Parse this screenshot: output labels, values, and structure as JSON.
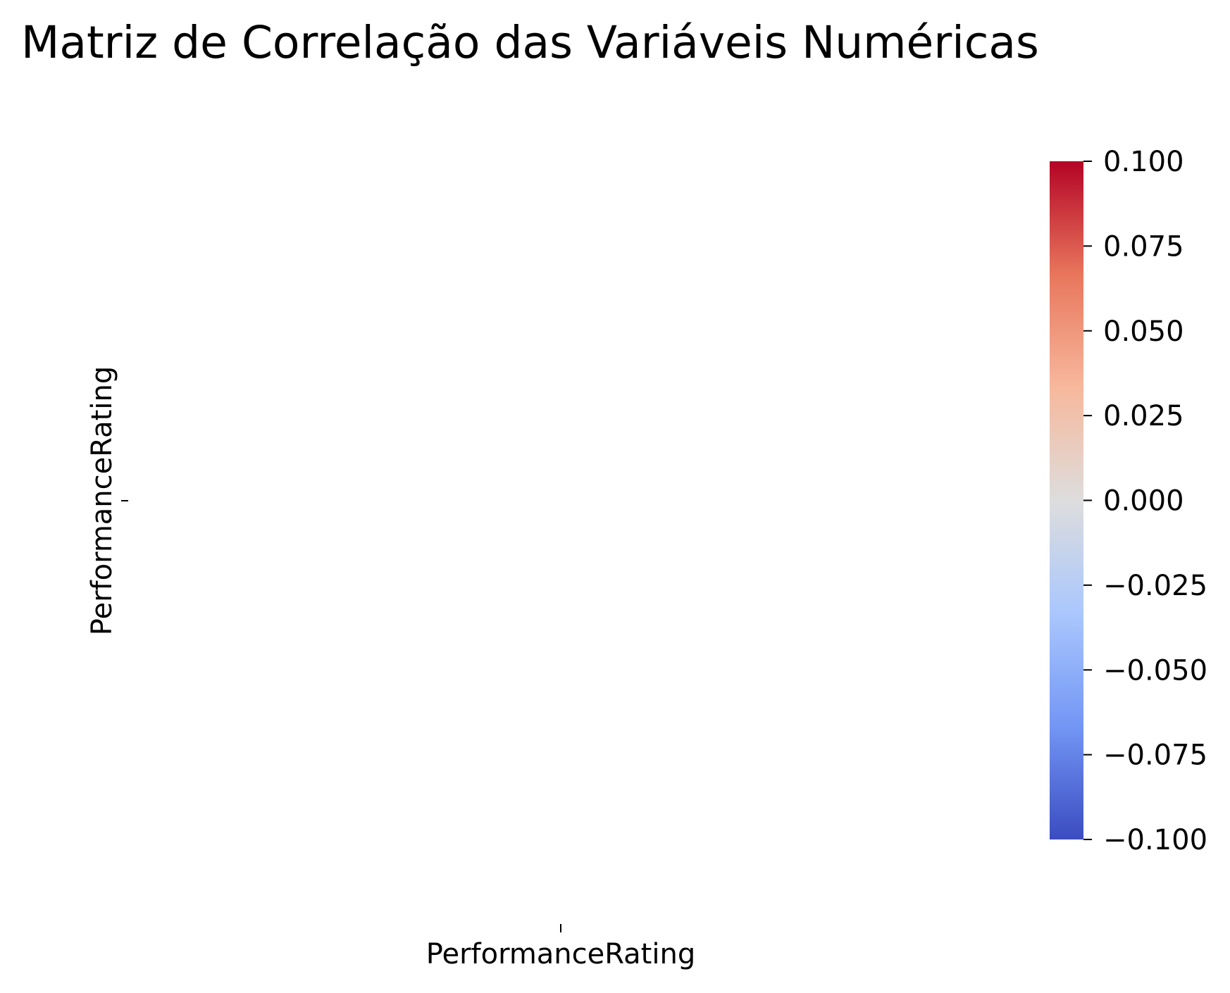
{
  "chart_data": {
    "type": "heatmap",
    "title": "Matriz de Correlação das Variáveis Numéricas",
    "x_labels": [
      "PerformanceRating"
    ],
    "y_labels": [
      "PerformanceRating"
    ],
    "values": [
      [
        null
      ]
    ],
    "colormap": "coolwarm",
    "colorbar": {
      "min": -0.1,
      "max": 0.1,
      "ticks": [
        {
          "value": 0.1,
          "label": "0.100"
        },
        {
          "value": 0.075,
          "label": "0.075"
        },
        {
          "value": 0.05,
          "label": "0.050"
        },
        {
          "value": 0.025,
          "label": "0.025"
        },
        {
          "value": 0.0,
          "label": "0.000"
        },
        {
          "value": -0.025,
          "label": "−0.025"
        },
        {
          "value": -0.05,
          "label": "−0.050"
        },
        {
          "value": -0.075,
          "label": "−0.075"
        },
        {
          "value": -0.1,
          "label": "−0.100"
        }
      ],
      "colors": [
        "#3b4cc0",
        "#7396f5",
        "#aac7fd",
        "#dddddd",
        "#f7b89c",
        "#e8765c",
        "#b40426"
      ]
    },
    "grid": false
  }
}
